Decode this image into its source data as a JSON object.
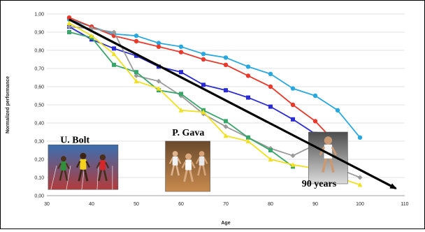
{
  "chart_data": {
    "type": "line",
    "title": "",
    "xlabel": "Age",
    "ylabel": "Normalized performance",
    "xlim": [
      30,
      110
    ],
    "ylim": [
      0.0,
      1.0
    ],
    "x_ticks": [
      "30",
      "40",
      "50",
      "60",
      "70",
      "80",
      "90",
      "100",
      "110"
    ],
    "y_ticks": [
      "0,00",
      "0,10",
      "0,20",
      "0,30",
      "0,40",
      "0,50",
      "0,60",
      "0,70",
      "0,80",
      "0,90",
      "1,00"
    ],
    "grid": "horizontal",
    "legend": "none",
    "series": [
      {
        "color": "#29a8e0",
        "marker": "circle",
        "x": [
          35,
          40,
          45,
          50,
          55,
          60,
          65,
          70,
          75,
          80,
          85,
          90,
          95,
          100
        ],
        "y": [
          0.97,
          0.93,
          0.89,
          0.88,
          0.84,
          0.82,
          0.78,
          0.76,
          0.71,
          0.67,
          0.59,
          0.55,
          0.47,
          0.32
        ]
      },
      {
        "color": "#e8392b",
        "marker": "circle",
        "x": [
          35,
          40,
          45,
          50,
          55,
          60,
          65,
          70,
          75,
          80,
          85,
          90,
          95
        ],
        "y": [
          0.98,
          0.93,
          0.88,
          0.85,
          0.82,
          0.79,
          0.75,
          0.72,
          0.66,
          0.6,
          0.5,
          0.41,
          0.28
        ]
      },
      {
        "color": "#2a2bd1",
        "marker": "square",
        "x": [
          35,
          40,
          45,
          50,
          55,
          60,
          65,
          70,
          75,
          80,
          85,
          90,
          95
        ],
        "y": [
          0.93,
          0.86,
          0.81,
          0.77,
          0.71,
          0.68,
          0.61,
          0.58,
          0.54,
          0.49,
          0.42,
          0.34,
          0.25
        ]
      },
      {
        "color": "#9a9a9a",
        "marker": "diamond",
        "x": [
          35,
          40,
          45,
          50,
          55,
          60,
          65,
          70,
          75,
          80,
          85,
          90,
          95,
          100
        ],
        "y": [
          0.93,
          0.92,
          0.9,
          0.66,
          0.63,
          0.55,
          0.45,
          0.38,
          0.32,
          0.26,
          0.22,
          0.28,
          0.15,
          0.1
        ]
      },
      {
        "color": "#3aa56a",
        "marker": "square",
        "x": [
          35,
          40,
          45,
          50,
          55,
          60,
          65,
          70,
          75,
          80,
          85
        ],
        "y": [
          0.9,
          0.87,
          0.72,
          0.68,
          0.58,
          0.56,
          0.47,
          0.41,
          0.32,
          0.25,
          0.16
        ]
      },
      {
        "color": "#f0e020",
        "marker": "triangle",
        "x": [
          35,
          40,
          45,
          50,
          55,
          60,
          65,
          70,
          75,
          80,
          85,
          90,
          95,
          100
        ],
        "y": [
          0.95,
          0.88,
          0.78,
          0.63,
          0.59,
          0.47,
          0.46,
          0.33,
          0.3,
          0.2,
          0.17,
          0.15,
          0.1,
          0.06
        ]
      }
    ],
    "trend_arrow": {
      "from": [
        35,
        0.97
      ],
      "to": [
        108,
        0.04
      ],
      "color": "#000000"
    },
    "annotations": [
      {
        "text": "U. Bolt",
        "x": 33,
        "y": 0.29
      },
      {
        "text": "P. Gava",
        "x": 58,
        "y": 0.33
      },
      {
        "text": "90 years",
        "x": 87,
        "y": 0.05
      }
    ],
    "photos": [
      {
        "label": "sprinters-photo",
        "x": 30.3,
        "y": 0.28
      },
      {
        "label": "masters-runners-photo",
        "x": 56.5,
        "y": 0.3
      },
      {
        "label": "elderly-runner-photo",
        "x": 88.5,
        "y": 0.35
      }
    ]
  }
}
